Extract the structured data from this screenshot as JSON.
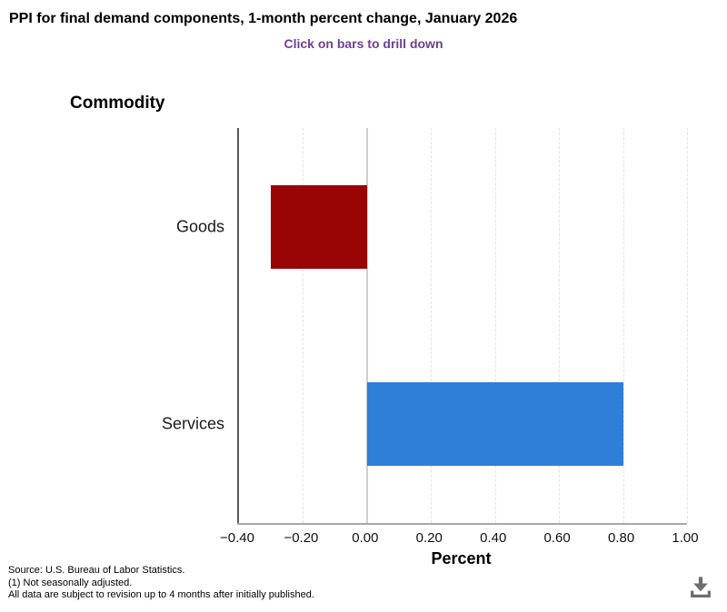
{
  "header": {
    "title": "PPI for final demand components, 1-month percent change, January 2026",
    "subtitle": "Click on bars to drill down"
  },
  "chart_data": {
    "type": "bar",
    "orientation": "horizontal",
    "title": "PPI for final demand components, 1-month percent change, January 2026",
    "subtitle": "Click on bars to drill down",
    "y_axis_title": "Commodity",
    "x_axis_title": "Percent",
    "categories": [
      "Goods",
      "Services"
    ],
    "values": [
      -0.3,
      0.8
    ],
    "bar_colors": [
      "#990404",
      "#2f7ed8"
    ],
    "xlim": [
      -0.4,
      1.0
    ],
    "xticks": [
      -0.4,
      -0.2,
      0.0,
      0.2,
      0.4,
      0.6,
      0.8,
      1.0
    ],
    "xtick_labels": [
      "−0.40",
      "−0.20",
      "0.00",
      "0.20",
      "0.40",
      "0.60",
      "0.80",
      "1.00"
    ],
    "grid": "vertical dashed gridlines at each tick, solid light line at zero, legend off",
    "legend": "none"
  },
  "footer": {
    "source_line": "Source: U.S. Bureau of Labor Statistics.",
    "note_line1": "(1) Not seasonally adjusted.",
    "note_line2": "All data are subject to revision up to 4 months after initially published."
  },
  "colors": {
    "subtitle_text": "#6e3f96",
    "goods_bar": "#990404",
    "services_bar": "#2f7ed8",
    "y_axis_line": "#5a5a5a",
    "x_axis_line": "#a8a8a8",
    "zero_line": "#cfcfcf",
    "gridline": "#e2e2e2",
    "download_icon": "#6e6e6e"
  },
  "icons": {
    "download": "download-icon"
  }
}
